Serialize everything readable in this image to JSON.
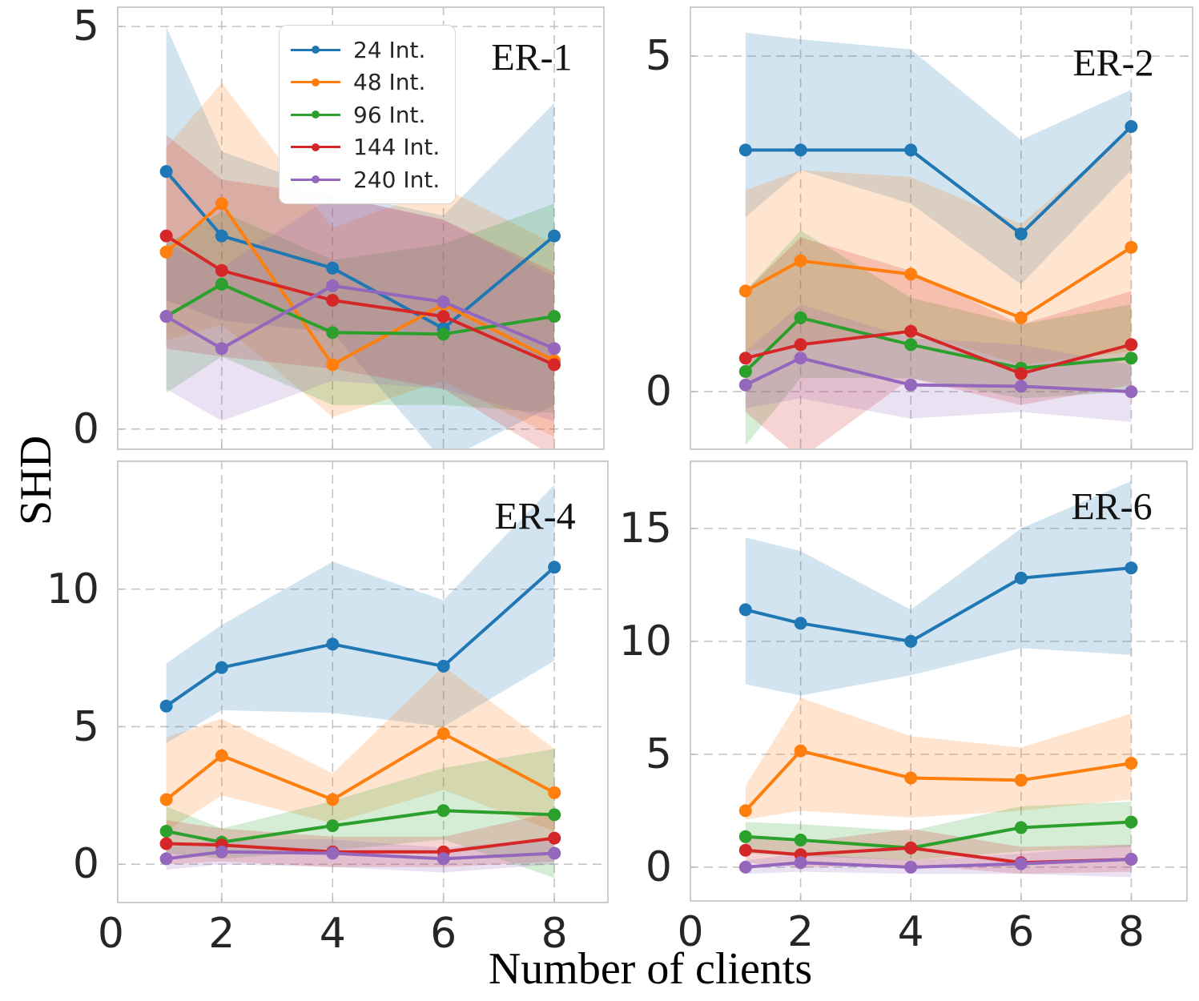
{
  "figure": {
    "ylabel": "SHD",
    "xlabel": "Number of clients",
    "text_color": "#262626",
    "grid_color": "#c4c4c4",
    "frame_color": "#cccccc",
    "background": "#ffffff",
    "legend": {
      "position": "upper-left-of-first-subplot",
      "entries": [
        {
          "label": "24 Int.",
          "color": "#1f77b4"
        },
        {
          "label": "48 Int.",
          "color": "#ff7f0e"
        },
        {
          "label": "96 Int.",
          "color": "#2ca02c"
        },
        {
          "label": "144 Int.",
          "color": "#d62728"
        },
        {
          "label": "240 Int.",
          "color": "#9467bd"
        }
      ]
    }
  },
  "chart_data": [
    {
      "type": "line",
      "title": "ER-1",
      "xlabel": "Number of clients",
      "ylabel": "SHD",
      "x": [
        1,
        2,
        4,
        6,
        8
      ],
      "xticks": [
        0,
        2,
        4,
        6,
        8
      ],
      "yticks": [
        0,
        5
      ],
      "xlim": [
        0.11,
        8.91
      ],
      "ylim": [
        -0.26,
        5.25
      ],
      "grid": true,
      "show_x_tick_labels": false,
      "series": [
        {
          "name": "24 Int.",
          "color": "#1f77b4",
          "values": [
            3.2,
            2.4,
            2.0,
            1.25,
            2.4
          ],
          "band_lo": [
            1.6,
            1.35,
            1.2,
            -0.4,
            0.3
          ],
          "band_hi": [
            5.0,
            3.45,
            2.95,
            2.65,
            4.05
          ]
        },
        {
          "name": "48 Int.",
          "color": "#ff7f0e",
          "values": [
            2.2,
            2.8,
            0.8,
            1.55,
            0.85
          ],
          "band_lo": [
            1.1,
            1.3,
            0.15,
            0.6,
            -0.1
          ],
          "band_hi": [
            3.5,
            4.3,
            2.5,
            3.0,
            2.3
          ]
        },
        {
          "name": "96 Int.",
          "color": "#2ca02c",
          "values": [
            1.4,
            1.8,
            1.2,
            1.18,
            1.4
          ],
          "band_lo": [
            0.45,
            0.9,
            0.3,
            0.3,
            0.2
          ],
          "band_hi": [
            2.3,
            2.7,
            2.1,
            2.3,
            2.8
          ]
        },
        {
          "name": "144 Int.",
          "color": "#d62728",
          "values": [
            2.4,
            1.97,
            1.6,
            1.4,
            0.8
          ],
          "band_lo": [
            1.0,
            0.9,
            0.75,
            0.5,
            -0.35
          ],
          "band_hi": [
            3.65,
            3.1,
            2.9,
            2.6,
            1.95
          ]
        },
        {
          "name": "240 Int.",
          "color": "#9467bd",
          "values": [
            1.4,
            1.0,
            1.78,
            1.58,
            1.0
          ],
          "band_lo": [
            0.5,
            0.1,
            0.6,
            0.5,
            0.1
          ],
          "band_hi": [
            2.3,
            2.0,
            2.9,
            2.6,
            1.9
          ]
        }
      ]
    },
    {
      "type": "line",
      "title": "ER-2",
      "xlabel": "Number of clients",
      "ylabel": "SHD",
      "x": [
        1,
        2,
        4,
        6,
        8
      ],
      "xticks": [
        0,
        2,
        4,
        6,
        8
      ],
      "yticks": [
        0,
        5
      ],
      "xlim": [
        -0.015,
        9.128
      ],
      "ylim": [
        -0.87,
        5.74
      ],
      "grid": true,
      "show_x_tick_labels": false,
      "series": [
        {
          "name": "24 Int.",
          "color": "#1f77b4",
          "values": [
            3.6,
            3.6,
            3.6,
            2.35,
            3.95
          ],
          "band_lo": [
            2.6,
            3.3,
            2.8,
            1.6,
            3.3
          ],
          "band_hi": [
            5.35,
            5.25,
            5.1,
            3.75,
            4.5
          ]
        },
        {
          "name": "48 Int.",
          "color": "#ff7f0e",
          "values": [
            1.5,
            1.95,
            1.75,
            1.1,
            2.15
          ],
          "band_lo": [
            0.6,
            0.7,
            0.9,
            0.4,
            0.6
          ],
          "band_hi": [
            3.0,
            3.3,
            3.2,
            2.5,
            3.9
          ]
        },
        {
          "name": "96 Int.",
          "color": "#2ca02c",
          "values": [
            0.3,
            1.1,
            0.7,
            0.35,
            0.5
          ],
          "band_lo": [
            -0.8,
            0.2,
            0.2,
            -0.1,
            0.0
          ],
          "band_hi": [
            1.5,
            2.4,
            1.4,
            1.0,
            1.3
          ]
        },
        {
          "name": "144 Int.",
          "color": "#d62728",
          "values": [
            0.5,
            0.7,
            0.9,
            0.27,
            0.7
          ],
          "band_lo": [
            -0.3,
            -1.0,
            0.2,
            -0.2,
            0.1
          ],
          "band_hi": [
            1.5,
            2.3,
            1.8,
            1.0,
            1.5
          ]
        },
        {
          "name": "240 Int.",
          "color": "#9467bd",
          "values": [
            0.1,
            0.5,
            0.1,
            0.08,
            0.0
          ],
          "band_lo": [
            -0.25,
            -0.1,
            -0.4,
            -0.3,
            -0.45
          ],
          "band_hi": [
            0.6,
            1.3,
            0.8,
            0.7,
            0.4
          ]
        }
      ]
    },
    {
      "type": "line",
      "title": "ER-4",
      "xlabel": "Number of clients",
      "ylabel": "SHD",
      "x": [
        1,
        2,
        4,
        6,
        8
      ],
      "xticks": [
        0,
        2,
        4,
        6,
        8
      ],
      "yticks": [
        0,
        5,
        10
      ],
      "xlim": [
        0.11,
        8.98
      ],
      "ylim": [
        -1.42,
        14.68
      ],
      "grid": true,
      "show_x_tick_labels": true,
      "series": [
        {
          "name": "24 Int.",
          "color": "#1f77b4",
          "values": [
            5.75,
            7.15,
            8.0,
            7.2,
            10.8
          ],
          "band_lo": [
            4.4,
            5.6,
            5.5,
            5.0,
            7.4
          ],
          "band_hi": [
            7.3,
            8.7,
            11.0,
            9.6,
            13.8
          ]
        },
        {
          "name": "48 Int.",
          "color": "#ff7f0e",
          "values": [
            2.35,
            3.95,
            2.35,
            4.75,
            2.6
          ],
          "band_lo": [
            1.2,
            2.5,
            1.5,
            2.7,
            1.2
          ],
          "band_hi": [
            4.6,
            5.3,
            3.3,
            7.2,
            4.2
          ]
        },
        {
          "name": "96 Int.",
          "color": "#2ca02c",
          "values": [
            1.2,
            0.8,
            1.4,
            1.95,
            1.8
          ],
          "band_lo": [
            0.4,
            0.2,
            0.5,
            0.9,
            -0.5
          ],
          "band_hi": [
            2.1,
            1.3,
            2.3,
            3.5,
            4.2
          ]
        },
        {
          "name": "144 Int.",
          "color": "#d62728",
          "values": [
            0.75,
            0.7,
            0.45,
            0.45,
            0.95
          ],
          "band_lo": [
            0.0,
            0.1,
            -0.1,
            -0.1,
            0.1
          ],
          "band_hi": [
            1.6,
            1.3,
            1.0,
            1.0,
            1.9
          ]
        },
        {
          "name": "240 Int.",
          "color": "#9467bd",
          "values": [
            0.2,
            0.45,
            0.4,
            0.2,
            0.4
          ],
          "band_lo": [
            -0.2,
            0.0,
            -0.1,
            -0.3,
            0.0
          ],
          "band_hi": [
            0.6,
            0.9,
            0.9,
            0.6,
            0.9
          ]
        }
      ]
    },
    {
      "type": "line",
      "title": "ER-6",
      "xlabel": "Number of clients",
      "ylabel": "SHD",
      "x": [
        1,
        2,
        4,
        6,
        8
      ],
      "xticks": [
        0,
        2,
        4,
        6,
        8
      ],
      "yticks": [
        0,
        5,
        10,
        15
      ],
      "xlim": [
        -0.015,
        9.026
      ],
      "ylim": [
        -1.53,
        18.01
      ],
      "grid": true,
      "show_x_tick_labels": true,
      "series": [
        {
          "name": "24 Int.",
          "color": "#1f77b4",
          "values": [
            11.4,
            10.8,
            10.0,
            12.8,
            13.25
          ],
          "band_lo": [
            8.1,
            7.6,
            8.5,
            9.7,
            9.4
          ],
          "band_hi": [
            14.6,
            14.0,
            11.4,
            15.0,
            17.1
          ]
        },
        {
          "name": "48 Int.",
          "color": "#ff7f0e",
          "values": [
            2.5,
            5.15,
            3.95,
            3.85,
            4.6
          ],
          "band_lo": [
            2.1,
            2.5,
            2.2,
            2.5,
            3.0
          ],
          "band_hi": [
            3.6,
            7.5,
            5.8,
            5.3,
            6.8
          ]
        },
        {
          "name": "96 Int.",
          "color": "#2ca02c",
          "values": [
            1.35,
            1.2,
            0.85,
            1.75,
            2.0
          ],
          "band_lo": [
            0.6,
            0.5,
            0.3,
            0.7,
            0.9
          ],
          "band_hi": [
            2.0,
            1.9,
            1.6,
            2.7,
            2.9
          ]
        },
        {
          "name": "144 Int.",
          "color": "#d62728",
          "values": [
            0.75,
            0.55,
            0.85,
            0.2,
            0.35
          ],
          "band_lo": [
            0.2,
            0.0,
            0.1,
            -0.3,
            -0.2
          ],
          "band_hi": [
            1.3,
            1.1,
            1.7,
            0.9,
            1.0
          ]
        },
        {
          "name": "240 Int.",
          "color": "#9467bd",
          "values": [
            0.0,
            0.2,
            0.0,
            0.15,
            0.35
          ],
          "band_lo": [
            -0.3,
            -0.2,
            -0.3,
            -0.3,
            -0.45
          ],
          "band_hi": [
            0.3,
            0.6,
            0.3,
            0.6,
            1.0
          ]
        }
      ]
    }
  ]
}
